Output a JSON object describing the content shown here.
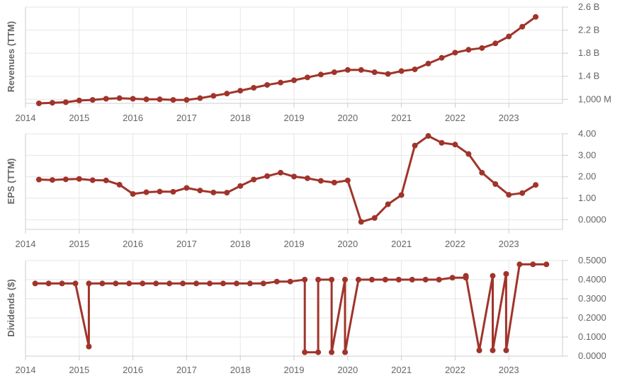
{
  "chart_data": [
    {
      "type": "line",
      "ylabel": "Revenues (TTM)",
      "xlim": [
        2014,
        2024
      ],
      "xticks": [
        "2014",
        "2015",
        "2016",
        "2017",
        "2018",
        "2019",
        "2020",
        "2021",
        "2022",
        "2023"
      ],
      "ylim_in_billions": [
        0.93,
        2.6
      ],
      "yticks": [
        {
          "value": 2.6,
          "label": "2.6 B"
        },
        {
          "value": 2.2,
          "label": "2.2 B"
        },
        {
          "value": 1.8,
          "label": "1.8 B"
        },
        {
          "value": 1.4,
          "label": "1.4 B"
        },
        {
          "value": 1.0,
          "label": "1,000 M"
        }
      ],
      "grid": true,
      "color": "#a0342a",
      "x": [
        2014.25,
        2014.5,
        2014.75,
        2015.0,
        2015.25,
        2015.5,
        2015.75,
        2016.0,
        2016.25,
        2016.5,
        2016.75,
        2017.0,
        2017.25,
        2017.5,
        2017.75,
        2018.0,
        2018.25,
        2018.5,
        2018.75,
        2019.0,
        2019.25,
        2019.5,
        2019.75,
        2020.0,
        2020.25,
        2020.5,
        2020.75,
        2021.0,
        2021.25,
        2021.5,
        2021.75,
        2022.0,
        2022.25,
        2022.5,
        2022.75,
        2023.0,
        2023.25,
        2023.5
      ],
      "values": [
        0.93,
        0.94,
        0.95,
        0.98,
        0.99,
        1.01,
        1.02,
        1.01,
        1.0,
        1.0,
        0.99,
        0.99,
        1.02,
        1.06,
        1.1,
        1.15,
        1.2,
        1.25,
        1.29,
        1.33,
        1.38,
        1.43,
        1.47,
        1.51,
        1.51,
        1.47,
        1.44,
        1.49,
        1.52,
        1.62,
        1.72,
        1.81,
        1.86,
        1.89,
        1.97,
        2.09,
        2.26,
        2.43
      ]
    },
    {
      "type": "line",
      "ylabel": "EPS (TTM)",
      "xlim": [
        2014,
        2024
      ],
      "xticks": [
        "2014",
        "2015",
        "2016",
        "2017",
        "2018",
        "2019",
        "2020",
        "2021",
        "2022",
        "2023"
      ],
      "ylim": [
        -0.45,
        4.0
      ],
      "yticks": [
        {
          "value": 4.0,
          "label": "4.00"
        },
        {
          "value": 3.0,
          "label": "3.00"
        },
        {
          "value": 2.0,
          "label": "2.00"
        },
        {
          "value": 1.0,
          "label": "1.00"
        },
        {
          "value": 0.0,
          "label": "0.0000"
        }
      ],
      "grid": true,
      "color": "#a0342a",
      "x": [
        2014.25,
        2014.5,
        2014.75,
        2015.0,
        2015.25,
        2015.5,
        2015.75,
        2016.0,
        2016.25,
        2016.5,
        2016.75,
        2017.0,
        2017.25,
        2017.5,
        2017.75,
        2018.0,
        2018.25,
        2018.5,
        2018.75,
        2019.0,
        2019.25,
        2019.5,
        2019.75,
        2020.0,
        2020.25,
        2020.5,
        2020.75,
        2021.0,
        2021.25,
        2021.5,
        2021.75,
        2022.0,
        2022.25,
        2022.5,
        2022.75,
        2023.0,
        2023.25,
        2023.5
      ],
      "values": [
        1.87,
        1.85,
        1.88,
        1.9,
        1.84,
        1.83,
        1.63,
        1.2,
        1.28,
        1.31,
        1.3,
        1.48,
        1.36,
        1.27,
        1.26,
        1.57,
        1.87,
        2.03,
        2.19,
        2.01,
        1.93,
        1.81,
        1.73,
        1.83,
        -0.1,
        0.08,
        0.72,
        1.15,
        3.45,
        3.9,
        3.58,
        3.5,
        3.06,
        2.19,
        1.66,
        1.16,
        1.24,
        1.62
      ]
    },
    {
      "type": "line",
      "ylabel": "Dividends ($)",
      "xlim": [
        2014,
        2024
      ],
      "xticks": [
        "2014",
        "2015",
        "2016",
        "2017",
        "2018",
        "2019",
        "2020",
        "2021",
        "2022",
        "2023"
      ],
      "ylim": [
        0.0,
        0.5
      ],
      "yticks": [
        {
          "value": 0.5,
          "label": "0.5000"
        },
        {
          "value": 0.4,
          "label": "0.4000"
        },
        {
          "value": 0.3,
          "label": "0.3000"
        },
        {
          "value": 0.2,
          "label": "0.2000"
        },
        {
          "value": 0.1,
          "label": "0.1000"
        },
        {
          "value": 0.0,
          "label": "0.0000"
        }
      ],
      "grid": true,
      "color": "#a0342a",
      "x": [
        2014.18,
        2014.43,
        2014.68,
        2014.93,
        2015.18,
        2015.18,
        2015.43,
        2015.68,
        2015.93,
        2016.18,
        2016.43,
        2016.68,
        2016.93,
        2017.18,
        2017.43,
        2017.68,
        2017.93,
        2018.18,
        2018.43,
        2018.68,
        2018.93,
        2019.2,
        2019.2,
        2019.45,
        2019.45,
        2019.7,
        2019.7,
        2019.95,
        2019.95,
        2020.2,
        2020.45,
        2020.7,
        2020.95,
        2021.2,
        2021.45,
        2021.7,
        2021.95,
        2022.2,
        2022.2,
        2022.45,
        2022.45,
        2022.7,
        2022.7,
        2022.95,
        2022.95,
        2023.2,
        2023.45,
        2023.7
      ],
      "values": [
        0.38,
        0.38,
        0.38,
        0.38,
        0.05,
        0.38,
        0.38,
        0.38,
        0.38,
        0.38,
        0.38,
        0.38,
        0.38,
        0.38,
        0.38,
        0.38,
        0.38,
        0.38,
        0.38,
        0.39,
        0.39,
        0.4,
        0.02,
        0.02,
        0.4,
        0.4,
        0.02,
        0.4,
        0.02,
        0.4,
        0.4,
        0.4,
        0.4,
        0.4,
        0.4,
        0.4,
        0.41,
        0.41,
        0.42,
        0.03,
        0.03,
        0.42,
        0.03,
        0.43,
        0.03,
        0.48,
        0.48,
        0.48
      ]
    }
  ]
}
